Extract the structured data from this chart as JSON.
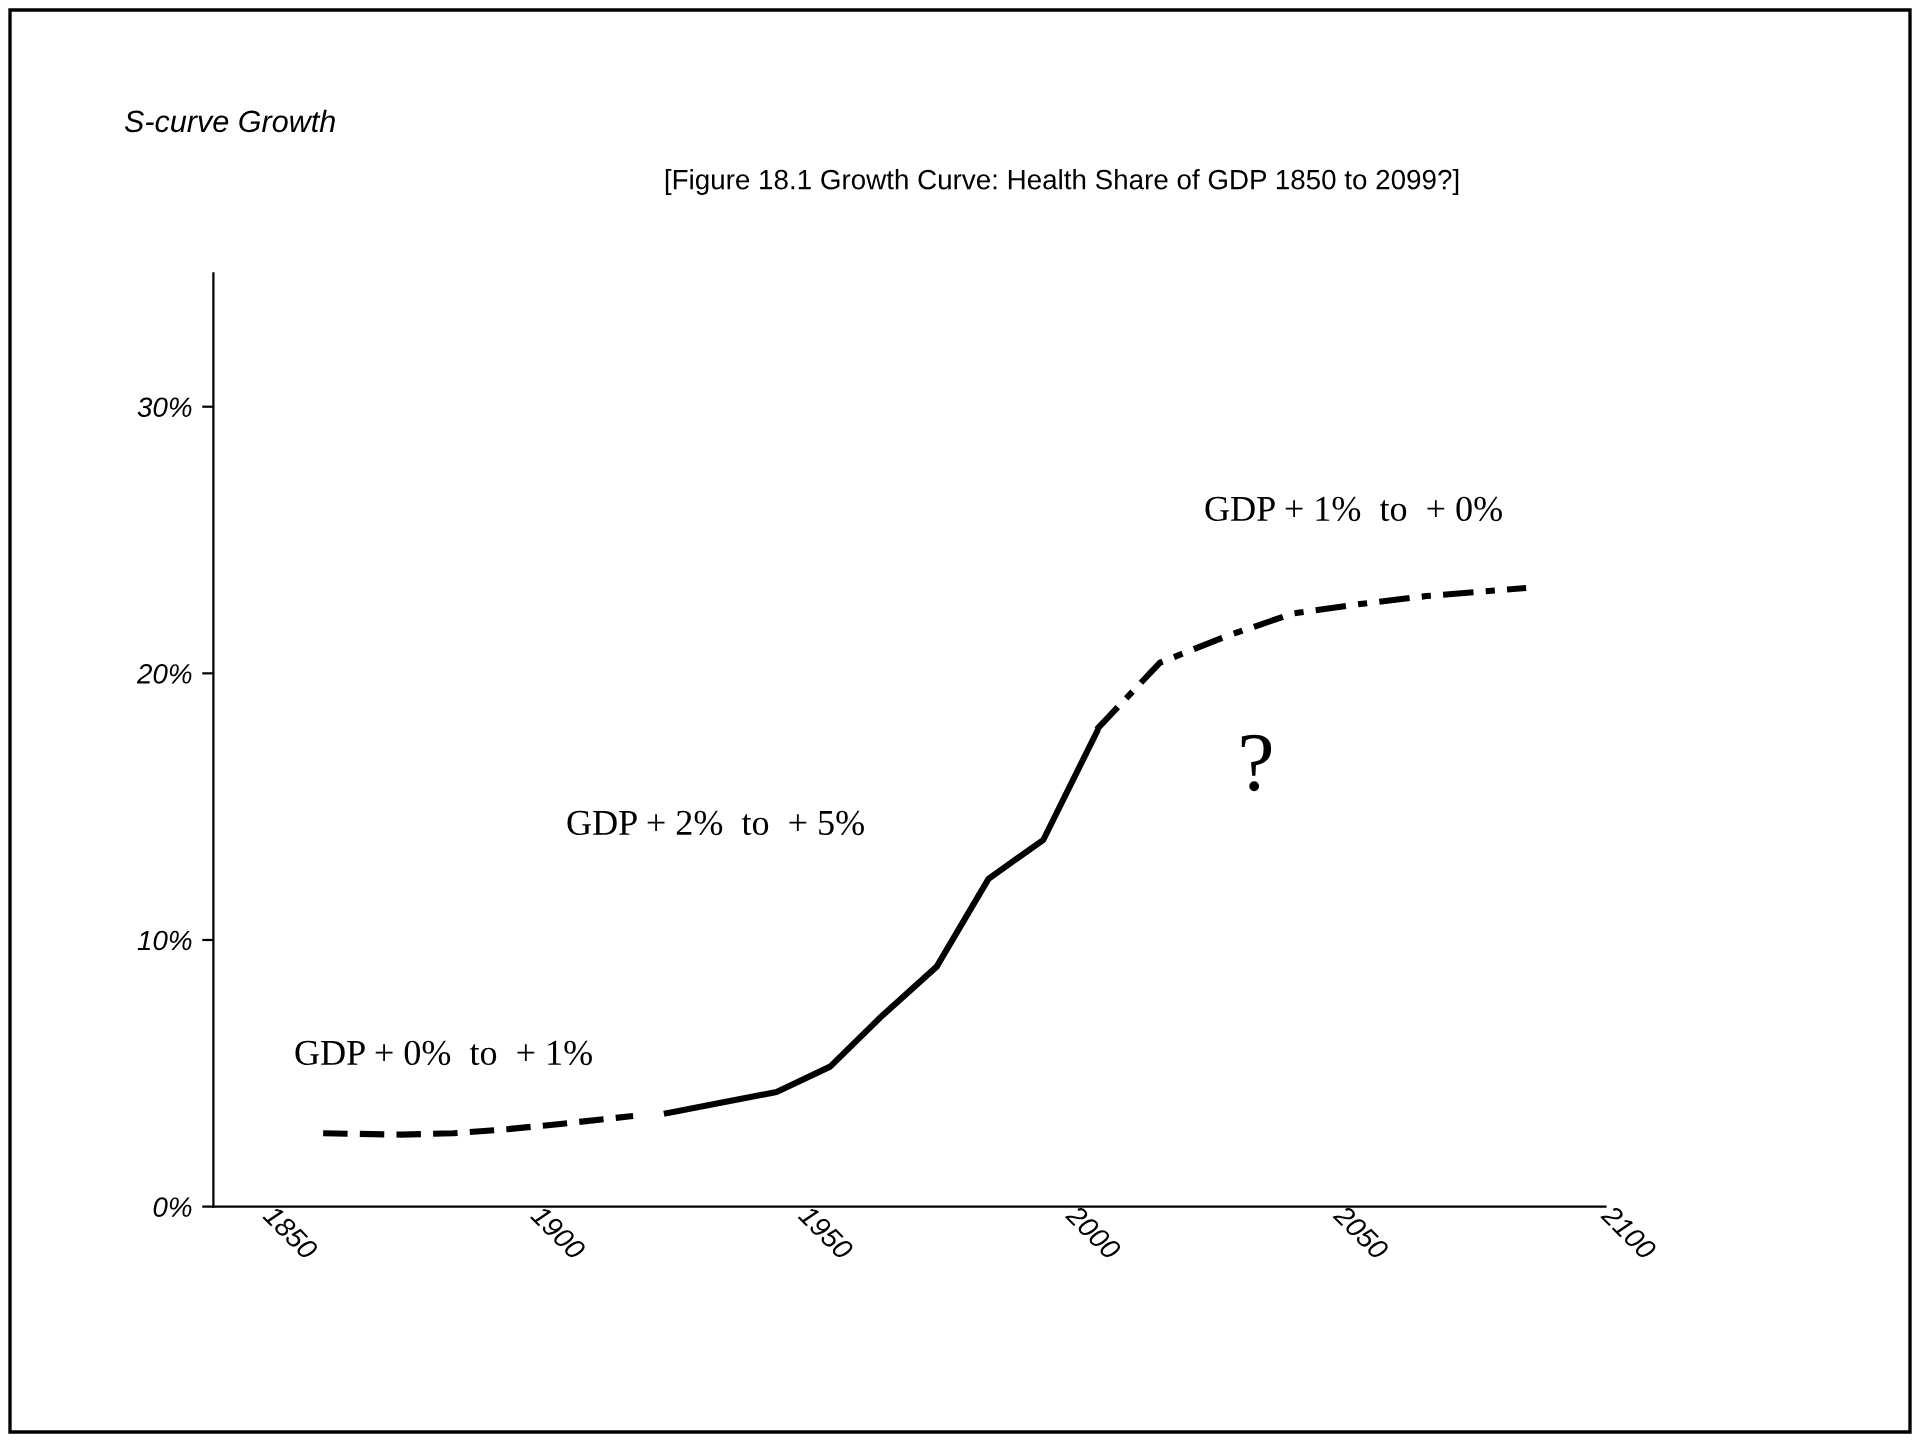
{
  "chart_data": {
    "type": "line",
    "title": "S-curve Growth",
    "subtitle": "[Figure 18.1 Growth Curve: Health Share of GDP 1850 to 2099?]",
    "series": [
      {
        "color": "#000000",
        "line_style": "dashed",
        "x": [
          1860.5,
          1874.9,
          1884.8,
          1894.8,
          1904.8,
          1918.4
        ],
        "values": [
          2.75,
          2.7,
          2.75,
          2.9,
          3.1,
          3.4
        ]
      },
      {
        "color": "#000000",
        "line_style": "solid",
        "x": [
          1924.7,
          1945.2,
          1955.2,
          1964.6,
          1975.1,
          1984.8,
          1995.0,
          2005.0
        ],
        "values": [
          3.5,
          4.3,
          5.25,
          7.1,
          9.0,
          12.3,
          13.75,
          17.8
        ]
      },
      {
        "color": "#000000",
        "line_style": "dashdot",
        "x": [
          2005.0,
          2016.8,
          2029.3,
          2041.7,
          2054.2,
          2066.6,
          2085.2
        ],
        "values": [
          17.9,
          20.4,
          21.4,
          22.25,
          22.6,
          22.9,
          23.2
        ]
      }
    ],
    "xlim": [
      1840,
      2100
    ],
    "xticks": [
      1850,
      1900,
      1950,
      2000,
      2050,
      2100
    ],
    "ylim": [
      0,
      35
    ],
    "yticks": [
      {
        "value": 0,
        "label": "0%"
      },
      {
        "value": 10,
        "label": "10%"
      },
      {
        "value": 20,
        "label": "20%"
      },
      {
        "value": 30,
        "label": "30%"
      }
    ],
    "annotations": [
      "GDP + 0%  to  + 1%",
      "GDP + 2%  to  + 5%",
      "GDP + 1%  to  + 0%",
      "?"
    ],
    "grid": false,
    "legend": false,
    "marker": "none"
  }
}
